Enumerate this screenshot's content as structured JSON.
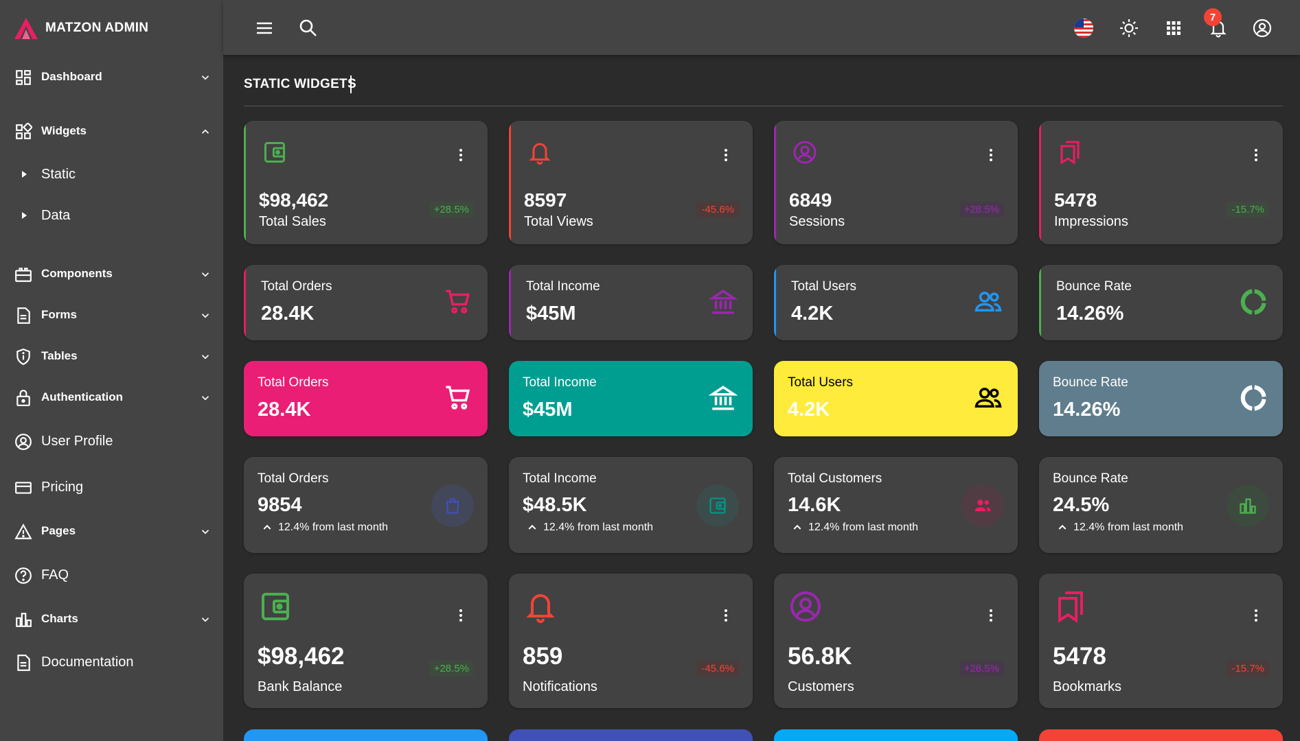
{
  "brand": {
    "name": "MATZON ADMIN",
    "logo_color": "#e91e63"
  },
  "sidebar": {
    "items": [
      {
        "label": "Dashboard",
        "icon": "dashboard-icon"
      },
      {
        "label": "Widgets",
        "icon": "widgets-icon"
      },
      {
        "label": "Components",
        "icon": "components-icon"
      },
      {
        "label": "Forms",
        "icon": "forms-icon"
      },
      {
        "label": "Tables",
        "icon": "tables-icon"
      },
      {
        "label": "Authentication",
        "icon": "lock-icon"
      },
      {
        "label": "User Profile",
        "icon": "user-circle-icon"
      },
      {
        "label": "Pricing",
        "icon": "credit-card-icon"
      },
      {
        "label": "Pages",
        "icon": "warning-icon"
      },
      {
        "label": "FAQ",
        "icon": "help-icon"
      },
      {
        "label": "Charts",
        "icon": "bar-chart-icon"
      },
      {
        "label": "Documentation",
        "icon": "document-icon"
      }
    ],
    "sub_items": [
      {
        "label": "Static"
      },
      {
        "label": "Data"
      }
    ]
  },
  "topbar": {
    "notification_count": "7"
  },
  "page": {
    "title": "STATIC WIDGETS"
  },
  "row1": [
    {
      "value": "$98,462",
      "label": "Total Sales",
      "change": "+28.5%",
      "color": "#4caf50",
      "icon": "wallet-icon"
    },
    {
      "value": "8597",
      "label": "Total Views",
      "change": "-45.6%",
      "color": "#f44336",
      "icon": "bell-icon"
    },
    {
      "value": "6849",
      "label": "Sessions",
      "change": "+28.5%",
      "color": "#9c27b0",
      "icon": "user-circle-icon"
    },
    {
      "value": "5478",
      "label": "Impressions",
      "change": "-15.7%",
      "color": "#e91e63",
      "icon": "bookmarks-icon"
    }
  ],
  "row2": [
    {
      "title": "Total Orders",
      "value": "28.4K",
      "color": "#e91e63",
      "icon": "cart-icon"
    },
    {
      "title": "Total Income",
      "value": "$45M",
      "color": "#9c27b0",
      "icon": "bank-icon"
    },
    {
      "title": "Total Users",
      "value": "4.2K",
      "color": "#2196f3",
      "icon": "users-icon"
    },
    {
      "title": "Bounce Rate",
      "value": "14.26%",
      "color": "#4caf50",
      "icon": "donut-icon"
    }
  ],
  "row3": [
    {
      "title": "Total Orders",
      "value": "28.4K",
      "bg": "#e91e74",
      "fg": "#ffffff",
      "icon": "cart-icon"
    },
    {
      "title": "Total Income",
      "value": "$45M",
      "bg": "#009e91",
      "fg": "#ffffff",
      "icon": "bank-icon"
    },
    {
      "title": "Total Users",
      "value": "4.2K",
      "bg": "#ffeb3b",
      "fg": "#000000",
      "icon": "users-icon"
    },
    {
      "title": "Bounce Rate",
      "value": "14.26%",
      "bg": "#5f7d8d",
      "fg": "#ffffff",
      "icon": "donut-icon"
    }
  ],
  "row4": [
    {
      "title": "Total Orders",
      "value": "9854",
      "trend": "12.4% from last month",
      "color": "#3f51b5",
      "icon": "bag-icon"
    },
    {
      "title": "Total Income",
      "value": "$48.5K",
      "trend": "12.4% from last month",
      "color": "#009688",
      "icon": "wallet-icon"
    },
    {
      "title": "Total Customers",
      "value": "14.6K",
      "trend": "12.4% from last month",
      "color": "#e91e63",
      "icon": "users-icon"
    },
    {
      "title": "Bounce Rate",
      "value": "24.5%",
      "trend": "12.4% from last month",
      "color": "#4caf50",
      "icon": "bar-chart-icon"
    }
  ],
  "row5": [
    {
      "value": "$98,462",
      "label": "Bank Balance",
      "change": "+28.5%",
      "color": "#4caf50",
      "icon": "wallet-icon"
    },
    {
      "value": "859",
      "label": "Notifications",
      "change": "-45.6%",
      "color": "#f44336",
      "icon": "bell-icon"
    },
    {
      "value": "56.8K",
      "label": "Customers",
      "change": "+28.5%",
      "color": "#9c27b0",
      "icon": "user-circle-icon"
    },
    {
      "value": "5478",
      "label": "Bookmarks",
      "change": "-15.7%",
      "color": "#e91e63",
      "icon": "bookmarks-icon"
    }
  ],
  "bottom_colors": [
    "#2196f3",
    "#3f51b5",
    "#03a9f4",
    "#f44336"
  ]
}
